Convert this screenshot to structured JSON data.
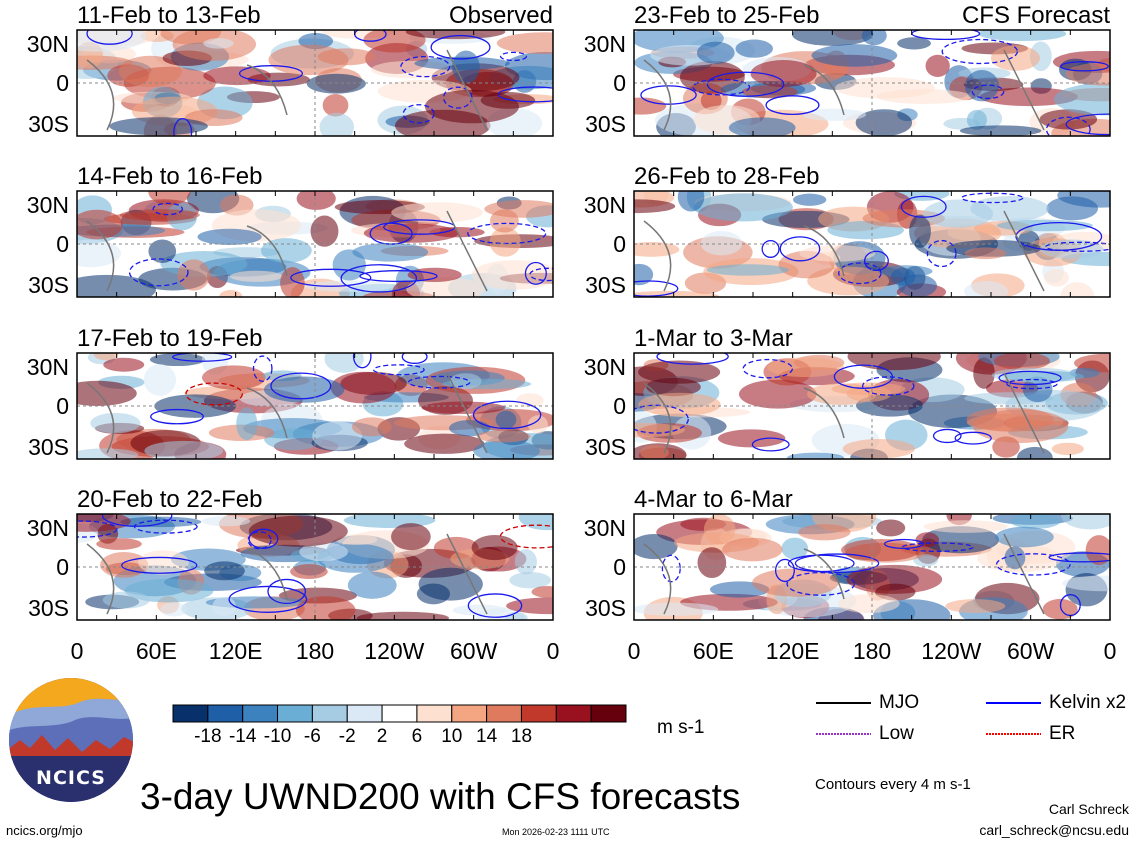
{
  "panels": {
    "left": [
      {
        "title": "11-Feb to 13-Feb",
        "tag": "Observed"
      },
      {
        "title": "14-Feb to 16-Feb",
        "tag": ""
      },
      {
        "title": "17-Feb to 19-Feb",
        "tag": ""
      },
      {
        "title": "20-Feb to 22-Feb",
        "tag": ""
      }
    ],
    "right": [
      {
        "title": "23-Feb to 25-Feb",
        "tag": "CFS Forecast"
      },
      {
        "title": "26-Feb to 28-Feb",
        "tag": ""
      },
      {
        "title": "1-Mar to 3-Mar",
        "tag": ""
      },
      {
        "title": "4-Mar to 6-Mar",
        "tag": ""
      }
    ]
  },
  "axes": {
    "lat_labels": [
      "30N",
      "0",
      "30S"
    ],
    "lon_labels": [
      "0",
      "60E",
      "120E",
      "180",
      "120W",
      "60W",
      "0"
    ]
  },
  "colorbar": {
    "ticks": [
      "-18",
      "-14",
      "-10",
      "-6",
      "-2",
      "2",
      "6",
      "10",
      "14",
      "18"
    ],
    "colors": [
      "#08306b",
      "#1f5fa8",
      "#3b82bf",
      "#6aaed6",
      "#a6cce3",
      "#dbe9f6",
      "#ffffff",
      "#fde0cf",
      "#f4a582",
      "#e07a5f",
      "#c0392b",
      "#99101f",
      "#67000d"
    ],
    "units": "m s-1"
  },
  "legend": {
    "items": [
      {
        "label": "MJO",
        "color": "#000000"
      },
      {
        "label": "Kelvin x2",
        "color": "#0000ff"
      },
      {
        "label": "Low",
        "color": "#9933cc"
      },
      {
        "label": "ER",
        "color": "#ff0000"
      }
    ],
    "contour_note": "Contours every 4 m s-1"
  },
  "main_title": "3-day UWND200 with CFS forecasts",
  "footer": {
    "url": "ncics.org/mjo",
    "timestamp": "Mon 2026-02-23 1111 UTC",
    "author": "Carl Schreck",
    "email": "carl_schreck@ncsu.edu"
  },
  "logo": {
    "text": "NCICS"
  }
}
